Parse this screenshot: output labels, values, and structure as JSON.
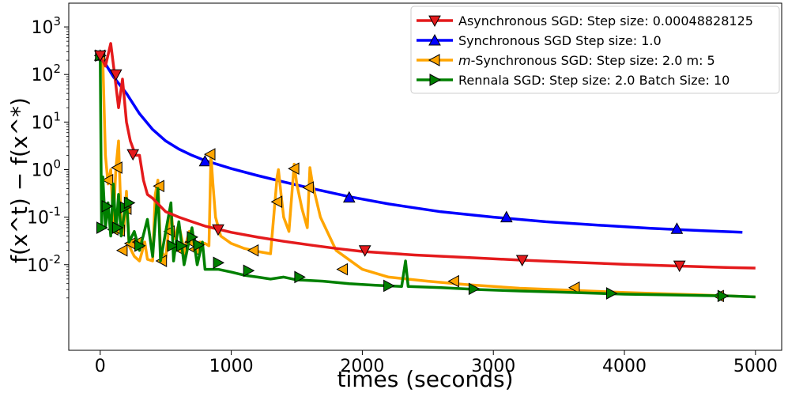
{
  "chart_data": {
    "type": "line",
    "xlabel": "times (seconds)",
    "ylabel": "f(x^t) − f(x^*)",
    "xlim": [
      -240,
      5200
    ],
    "ylim_log10": [
      -3.8,
      3.5
    ],
    "y_scale": "log",
    "x_ticks": [
      0,
      1000,
      2000,
      3000,
      4000,
      5000
    ],
    "x_tick_labels": [
      "0",
      "1000",
      "2000",
      "3000",
      "4000",
      "5000"
    ],
    "y_ticks": [
      {
        "base": "10",
        "exp": "-2"
      },
      {
        "base": "10",
        "exp": "-1"
      },
      {
        "base": "10",
        "exp": "0"
      },
      {
        "base": "10",
        "exp": "1"
      },
      {
        "base": "10",
        "exp": "2"
      },
      {
        "base": "10",
        "exp": "3"
      }
    ],
    "legend_position": "top-right",
    "series": [
      {
        "name": "Asynchronous SGD: Step size: 0.00048828125",
        "color": "#e41a1c",
        "marker": "triangle-down",
        "line": [
          [
            0,
            250
          ],
          [
            40,
            150
          ],
          [
            80,
            450
          ],
          [
            110,
            100
          ],
          [
            140,
            20
          ],
          [
            170,
            80
          ],
          [
            200,
            10
          ],
          [
            230,
            4
          ],
          [
            270,
            2
          ],
          [
            300,
            2
          ],
          [
            330,
            0.6
          ],
          [
            360,
            0.3
          ],
          [
            400,
            0.25
          ],
          [
            450,
            0.18
          ],
          [
            500,
            0.13
          ],
          [
            600,
            0.1
          ],
          [
            700,
            0.08
          ],
          [
            800,
            0.065
          ],
          [
            900,
            0.056
          ],
          [
            1000,
            0.048
          ],
          [
            1200,
            0.038
          ],
          [
            1400,
            0.031
          ],
          [
            1600,
            0.026
          ],
          [
            1800,
            0.022
          ],
          [
            2000,
            0.019
          ],
          [
            2400,
            0.016
          ],
          [
            2800,
            0.0142
          ],
          [
            3200,
            0.0125
          ],
          [
            3600,
            0.0113
          ],
          [
            4000,
            0.0102
          ],
          [
            4400,
            0.0094
          ],
          [
            4800,
            0.0087
          ],
          [
            5000,
            0.0085
          ]
        ],
        "markers": [
          [
            0,
            250
          ],
          [
            120,
            100
          ],
          [
            250,
            2.1
          ],
          [
            900,
            0.055
          ],
          [
            2020,
            0.02
          ],
          [
            3220,
            0.0125
          ],
          [
            4420,
            0.0095
          ]
        ]
      },
      {
        "name": "Synchronous SGD Step size: 1.0",
        "color": "#0000ff",
        "marker": "triangle-up",
        "line": [
          [
            0,
            250
          ],
          [
            50,
            150
          ],
          [
            100,
            90
          ],
          [
            200,
            40
          ],
          [
            300,
            15
          ],
          [
            400,
            7
          ],
          [
            500,
            4
          ],
          [
            600,
            2.7
          ],
          [
            700,
            2
          ],
          [
            800,
            1.55
          ],
          [
            1000,
            1.05
          ],
          [
            1200,
            0.75
          ],
          [
            1400,
            0.55
          ],
          [
            1600,
            0.41
          ],
          [
            1900,
            0.27
          ],
          [
            2200,
            0.19
          ],
          [
            2600,
            0.13
          ],
          [
            3000,
            0.1
          ],
          [
            3400,
            0.08
          ],
          [
            3800,
            0.068
          ],
          [
            4200,
            0.058
          ],
          [
            4600,
            0.052
          ],
          [
            4900,
            0.048
          ]
        ],
        "markers": [
          [
            0,
            250
          ],
          [
            800,
            1.5
          ],
          [
            1900,
            0.26
          ],
          [
            3100,
            0.1
          ],
          [
            4400,
            0.057
          ]
        ]
      },
      {
        "name": "m-Synchronous  SGD: Step size: 2.0 m: 5",
        "legend_prefix": "m",
        "legend_rest": "-Synchronous  SGD: Step size: 2.0 m: 5",
        "color": "#ffa500",
        "marker": "triangle-left",
        "line": [
          [
            0,
            250
          ],
          [
            20,
            200
          ],
          [
            40,
            2
          ],
          [
            60,
            0.5
          ],
          [
            80,
            1
          ],
          [
            100,
            0.08
          ],
          [
            120,
            1.1
          ],
          [
            140,
            4
          ],
          [
            160,
            0.08
          ],
          [
            180,
            0.05
          ],
          [
            200,
            0.35
          ],
          [
            220,
            0.025
          ],
          [
            260,
            0.015
          ],
          [
            300,
            0.012
          ],
          [
            340,
            0.03
          ],
          [
            360,
            0.013
          ],
          [
            400,
            0.012
          ],
          [
            420,
            0.3
          ],
          [
            440,
            0.6
          ],
          [
            460,
            0.02
          ],
          [
            500,
            0.014
          ],
          [
            540,
            0.16
          ],
          [
            560,
            0.035
          ],
          [
            600,
            0.07
          ],
          [
            640,
            0.02
          ],
          [
            680,
            0.05
          ],
          [
            720,
            0.025
          ],
          [
            760,
            0.03
          ],
          [
            800,
            0.028
          ],
          [
            830,
            0.025
          ],
          [
            845,
            2
          ],
          [
            860,
            0.5
          ],
          [
            880,
            0.1
          ],
          [
            920,
            0.04
          ],
          [
            1000,
            0.028
          ],
          [
            1100,
            0.022
          ],
          [
            1200,
            0.019
          ],
          [
            1300,
            0.017
          ],
          [
            1350,
            0.7
          ],
          [
            1360,
            1
          ],
          [
            1380,
            0.3
          ],
          [
            1400,
            0.1
          ],
          [
            1440,
            0.05
          ],
          [
            1480,
            1.3
          ],
          [
            1500,
            0.5
          ],
          [
            1540,
            0.15
          ],
          [
            1580,
            0.06
          ],
          [
            1600,
            1.1
          ],
          [
            1620,
            0.5
          ],
          [
            1680,
            0.1
          ],
          [
            1800,
            0.02
          ],
          [
            2000,
            0.008
          ],
          [
            2200,
            0.0055
          ],
          [
            2500,
            0.0045
          ],
          [
            2800,
            0.0038
          ],
          [
            3200,
            0.0032
          ],
          [
            3600,
            0.0029
          ],
          [
            4000,
            0.0026
          ],
          [
            4400,
            0.0024
          ],
          [
            4800,
            0.0022
          ],
          [
            5000,
            0.0021
          ]
        ],
        "markers": [
          [
            0,
            250
          ],
          [
            60,
            0.6
          ],
          [
            130,
            1.1
          ],
          [
            100,
            0.055
          ],
          [
            150,
            0.052
          ],
          [
            170,
            0.02
          ],
          [
            200,
            0.15
          ],
          [
            230,
            0.028
          ],
          [
            290,
            0.03
          ],
          [
            450,
            0.45
          ],
          [
            530,
            0.05
          ],
          [
            470,
            0.012
          ],
          [
            620,
            0.02
          ],
          [
            690,
            0.03
          ],
          [
            720,
            0.021
          ],
          [
            840,
            2.1
          ],
          [
            1170,
            0.02
          ],
          [
            1350,
            0.21
          ],
          [
            1480,
            1.05
          ],
          [
            1590,
            0.42
          ],
          [
            1850,
            0.008
          ],
          [
            2700,
            0.0045
          ],
          [
            3620,
            0.0033
          ],
          [
            4720,
            0.0022
          ]
        ]
      },
      {
        "name": "Rennala SGD: Step size: 2.0 Batch Size: 10",
        "color": "#008000",
        "marker": "triangle-right",
        "line": [
          [
            0,
            250
          ],
          [
            10,
            0.06
          ],
          [
            20,
            0.7
          ],
          [
            40,
            0.06
          ],
          [
            60,
            0.2
          ],
          [
            80,
            0.04
          ],
          [
            100,
            0.5
          ],
          [
            120,
            0.05
          ],
          [
            140,
            0.3
          ],
          [
            160,
            0.04
          ],
          [
            200,
            0.25
          ],
          [
            220,
            0.03
          ],
          [
            260,
            0.05
          ],
          [
            300,
            0.02
          ],
          [
            360,
            0.09
          ],
          [
            400,
            0.015
          ],
          [
            440,
            0.4
          ],
          [
            460,
            0.012
          ],
          [
            500,
            0.05
          ],
          [
            540,
            0.2
          ],
          [
            560,
            0.012
          ],
          [
            600,
            0.08
          ],
          [
            640,
            0.01
          ],
          [
            700,
            0.06
          ],
          [
            740,
            0.01
          ],
          [
            780,
            0.03
          ],
          [
            800,
            0.008
          ],
          [
            900,
            0.008
          ],
          [
            1000,
            0.007
          ],
          [
            1100,
            0.006
          ],
          [
            1200,
            0.0055
          ],
          [
            1300,
            0.005
          ],
          [
            1400,
            0.0055
          ],
          [
            1500,
            0.0048
          ],
          [
            1700,
            0.0045
          ],
          [
            1900,
            0.004
          ],
          [
            2100,
            0.0037
          ],
          [
            2300,
            0.0035
          ],
          [
            2330,
            0.012
          ],
          [
            2350,
            0.0035
          ],
          [
            2600,
            0.0033
          ],
          [
            2900,
            0.003
          ],
          [
            3200,
            0.0028
          ],
          [
            3600,
            0.0026
          ],
          [
            4000,
            0.0024
          ],
          [
            4400,
            0.0023
          ],
          [
            4800,
            0.0022
          ],
          [
            5000,
            0.0021
          ]
        ],
        "markers": [
          [
            0,
            250
          ],
          [
            10,
            0.06
          ],
          [
            50,
            0.17
          ],
          [
            130,
            0.06
          ],
          [
            190,
            0.16
          ],
          [
            220,
            0.2
          ],
          [
            300,
            0.025
          ],
          [
            550,
            0.025
          ],
          [
            620,
            0.025
          ],
          [
            700,
            0.038
          ],
          [
            750,
            0.026
          ],
          [
            900,
            0.011
          ],
          [
            1130,
            0.0075
          ],
          [
            1520,
            0.0055
          ],
          [
            2200,
            0.0036
          ],
          [
            2850,
            0.0031
          ],
          [
            3900,
            0.0025
          ],
          [
            4750,
            0.0022
          ]
        ]
      }
    ]
  }
}
